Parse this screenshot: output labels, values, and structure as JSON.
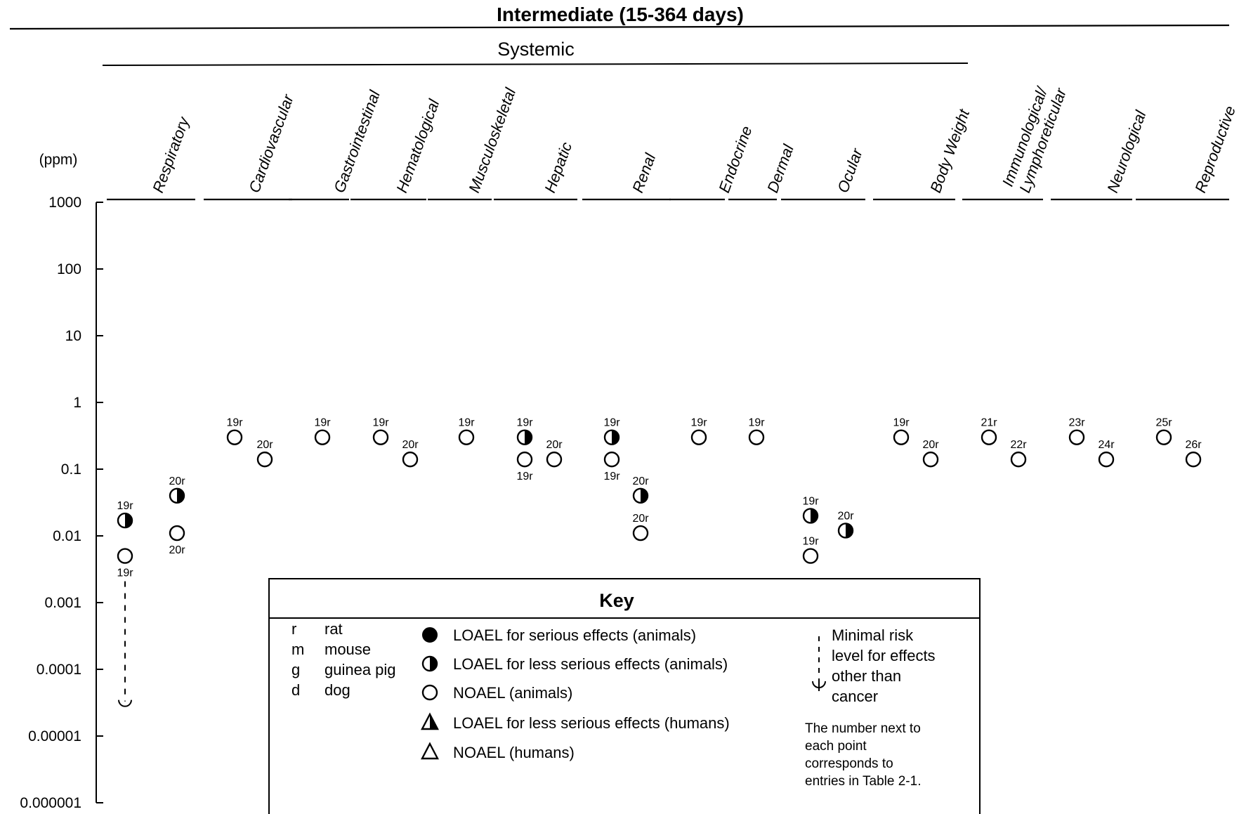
{
  "chart_data": {
    "type": "scatter",
    "title": "Intermediate (15-364 days)",
    "group_label": "Systemic",
    "ylabel": "(ppm)",
    "yscale": "log",
    "ylim": [
      1e-06,
      1000
    ],
    "yticks": [
      {
        "value": 1000,
        "label": "1000"
      },
      {
        "value": 100,
        "label": "100"
      },
      {
        "value": 10,
        "label": "10"
      },
      {
        "value": 1,
        "label": "1"
      },
      {
        "value": 0.1,
        "label": "0.1"
      },
      {
        "value": 0.01,
        "label": "0.01"
      },
      {
        "value": 0.001,
        "label": "0.001"
      },
      {
        "value": 0.0001,
        "label": "0.0001"
      },
      {
        "value": 1e-05,
        "label": "0.00001"
      },
      {
        "value": 1e-06,
        "label": "0.000001"
      }
    ],
    "categories": [
      {
        "name": "Respiratory",
        "lines": [
          "Respiratory"
        ]
      },
      {
        "name": "Cardiovascular",
        "lines": [
          "Cardiovascular"
        ]
      },
      {
        "name": "Gastrointestinal",
        "lines": [
          "Gastrointestinal"
        ]
      },
      {
        "name": "Hematological",
        "lines": [
          "Hematological"
        ]
      },
      {
        "name": "Musculoskeletal",
        "lines": [
          "Musculoskeletal"
        ]
      },
      {
        "name": "Hepatic",
        "lines": [
          "Hepatic"
        ]
      },
      {
        "name": "Renal",
        "lines": [
          "Renal"
        ]
      },
      {
        "name": "Endocrine",
        "lines": [
          "Endocrine"
        ]
      },
      {
        "name": "Dermal",
        "lines": [
          "Dermal"
        ]
      },
      {
        "name": "Ocular",
        "lines": [
          "Ocular"
        ]
      },
      {
        "name": "Body Weight",
        "lines": [
          "Body Weight"
        ]
      },
      {
        "name": "Immunological/Lymphoreticular",
        "lines": [
          "Immunological/",
          "Lymphoreticular"
        ]
      },
      {
        "name": "Neurological",
        "lines": [
          "Neurological"
        ]
      },
      {
        "name": "Reproductive",
        "lines": [
          "Reproductive"
        ]
      }
    ],
    "points": [
      {
        "category": "Respiratory",
        "label": "19r",
        "value": 0.017,
        "type": "loael_less_serious_animal"
      },
      {
        "category": "Respiratory",
        "label": "19r",
        "value": 0.005,
        "type": "noael_animal"
      },
      {
        "category": "Respiratory",
        "label": "20r",
        "value": 0.04,
        "type": "loael_less_serious_animal"
      },
      {
        "category": "Respiratory",
        "label": "20r",
        "value": 0.011,
        "type": "noael_animal"
      },
      {
        "category": "Cardiovascular",
        "label": "19r",
        "value": 0.3,
        "type": "noael_animal"
      },
      {
        "category": "Cardiovascular",
        "label": "20r",
        "value": 0.14,
        "type": "noael_animal"
      },
      {
        "category": "Gastrointestinal",
        "label": "19r",
        "value": 0.3,
        "type": "noael_animal"
      },
      {
        "category": "Hematological",
        "label": "19r",
        "value": 0.3,
        "type": "noael_animal"
      },
      {
        "category": "Hematological",
        "label": "20r",
        "value": 0.14,
        "type": "noael_animal"
      },
      {
        "category": "Musculoskeletal",
        "label": "19r",
        "value": 0.3,
        "type": "noael_animal"
      },
      {
        "category": "Hepatic",
        "label": "19r",
        "value": 0.3,
        "type": "loael_less_serious_animal"
      },
      {
        "category": "Hepatic",
        "label": "19r",
        "value": 0.14,
        "type": "noael_animal"
      },
      {
        "category": "Hepatic",
        "label": "20r",
        "value": 0.14,
        "type": "noael_animal"
      },
      {
        "category": "Renal",
        "label": "19r",
        "value": 0.3,
        "type": "loael_less_serious_animal"
      },
      {
        "category": "Renal",
        "label": "19r",
        "value": 0.14,
        "type": "noael_animal"
      },
      {
        "category": "Renal",
        "label": "20r",
        "value": 0.04,
        "type": "loael_less_serious_animal"
      },
      {
        "category": "Renal",
        "label": "20r",
        "value": 0.011,
        "type": "noael_animal"
      },
      {
        "category": "Endocrine",
        "label": "19r",
        "value": 0.3,
        "type": "noael_animal"
      },
      {
        "category": "Dermal",
        "label": "19r",
        "value": 0.3,
        "type": "noael_animal"
      },
      {
        "category": "Ocular",
        "label": "19r",
        "value": 0.02,
        "type": "loael_less_serious_animal"
      },
      {
        "category": "Ocular",
        "label": "19r",
        "value": 0.005,
        "type": "noael_animal"
      },
      {
        "category": "Ocular",
        "label": "20r",
        "value": 0.012,
        "type": "loael_less_serious_animal"
      },
      {
        "category": "Body Weight",
        "label": "19r",
        "value": 0.3,
        "type": "noael_animal"
      },
      {
        "category": "Body Weight",
        "label": "20r",
        "value": 0.14,
        "type": "noael_animal"
      },
      {
        "category": "Immunological/Lymphoreticular",
        "label": "21r",
        "value": 0.3,
        "type": "noael_animal"
      },
      {
        "category": "Immunological/Lymphoreticular",
        "label": "22r",
        "value": 0.14,
        "type": "noael_animal"
      },
      {
        "category": "Neurological",
        "label": "23r",
        "value": 0.3,
        "type": "noael_animal"
      },
      {
        "category": "Neurological",
        "label": "24r",
        "value": 0.14,
        "type": "noael_animal"
      },
      {
        "category": "Reproductive",
        "label": "25r",
        "value": 0.3,
        "type": "noael_animal"
      },
      {
        "category": "Reproductive",
        "label": "26r",
        "value": 0.14,
        "type": "noael_animal"
      }
    ],
    "mrl": {
      "category": "Respiratory",
      "value": 3e-05,
      "from_label": "19r"
    }
  },
  "key": {
    "title": "Key",
    "species": [
      {
        "code": "r",
        "name": "rat"
      },
      {
        "code": "m",
        "name": "mouse"
      },
      {
        "code": "g",
        "name": "guinea pig"
      },
      {
        "code": "d",
        "name": "dog"
      }
    ],
    "symbols": [
      {
        "icon": "filled-circle-icon",
        "text": "LOAEL for serious effects (animals)"
      },
      {
        "icon": "half-filled-circle-icon",
        "text": "LOAEL for less serious effects (animals)"
      },
      {
        "icon": "open-circle-icon",
        "text": "NOAEL (animals)"
      },
      {
        "icon": "half-filled-triangle-icon",
        "text": "LOAEL for less serious effects (humans)"
      },
      {
        "icon": "open-triangle-icon",
        "text": "NOAEL (humans)"
      }
    ],
    "mrl_lines": [
      "Minimal risk",
      "level for effects",
      "other than",
      "cancer"
    ],
    "note_lines": [
      "The number next to",
      "each point",
      "corresponds to",
      "entries in Table 2-1."
    ]
  }
}
